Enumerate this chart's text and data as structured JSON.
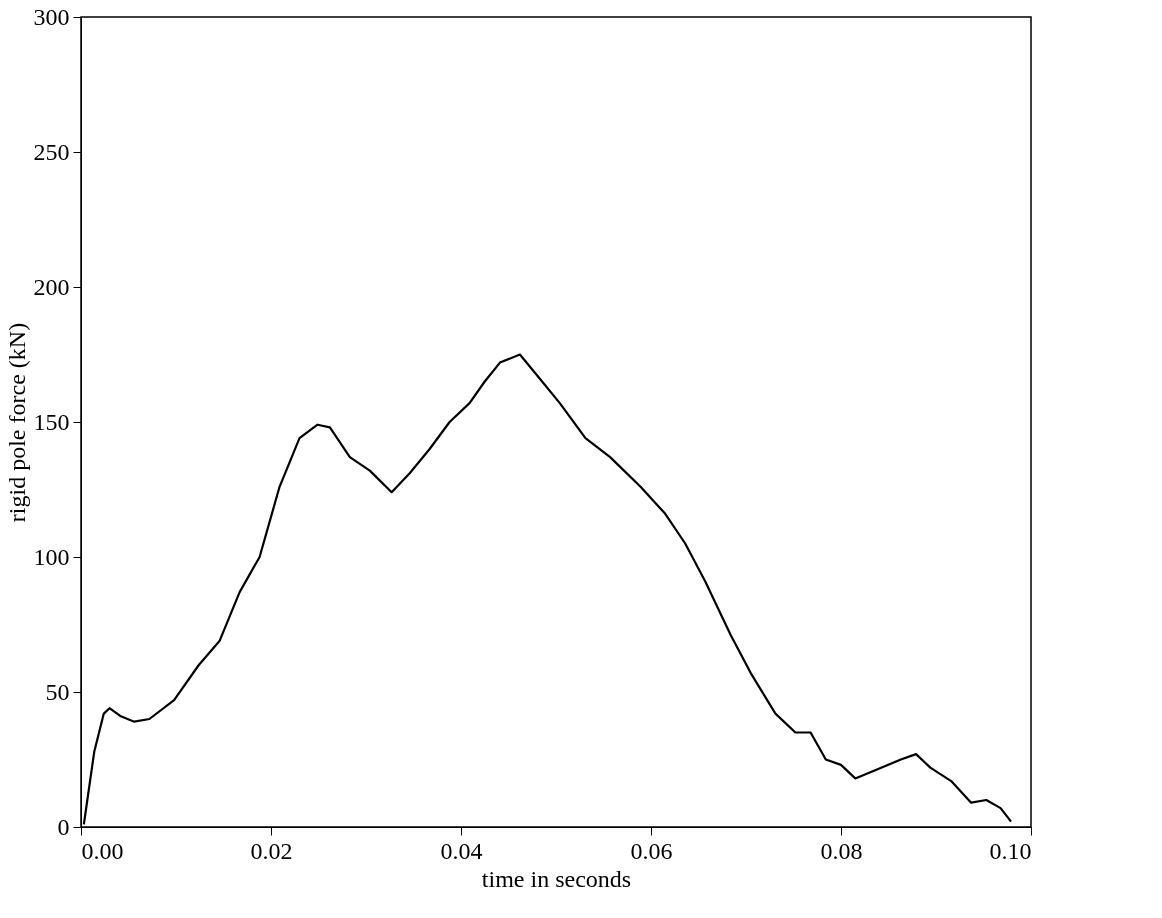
{
  "chart_data": {
    "type": "line",
    "xlabel": "time in seconds",
    "ylabel": "rigid pole force   (kN)",
    "xlim": [
      0,
      0.1
    ],
    "xticks": [
      {
        "value": 0,
        "label": "0.00"
      },
      {
        "value": 0.02,
        "label": "0.02"
      },
      {
        "value": 0.04,
        "label": "0.04"
      },
      {
        "value": 0.06,
        "label": "0.06"
      },
      {
        "value": 0.08,
        "label": "0.08"
      },
      {
        "value": 0.1,
        "label": "0.10"
      }
    ],
    "ylim": [
      0,
      300
    ],
    "yticks": [
      0,
      50,
      100,
      150,
      200,
      250,
      300
    ],
    "grid": false,
    "marker": "none",
    "line_style": "solid",
    "series": [
      {
        "color": "#000000",
        "x": [
          0.0003,
          0.0014,
          0.0024,
          0.003,
          0.0042,
          0.0056,
          0.0072,
          0.0098,
          0.0124,
          0.0146,
          0.0167,
          0.0188,
          0.0209,
          0.023,
          0.0249,
          0.0262,
          0.0283,
          0.0304,
          0.0327,
          0.0346,
          0.0367,
          0.0388,
          0.0409,
          0.0425,
          0.0441,
          0.0462,
          0.0483,
          0.0504,
          0.0531,
          0.0557,
          0.0589,
          0.0615,
          0.0636,
          0.0657,
          0.0684,
          0.0705,
          0.0731,
          0.0752,
          0.0768,
          0.0784,
          0.08,
          0.0815,
          0.0836,
          0.0863,
          0.0879,
          0.0894,
          0.0916,
          0.0937,
          0.0953,
          0.0968,
          0.0979
        ],
        "values": [
          1,
          28,
          42,
          44,
          41,
          39,
          40,
          47,
          60,
          69,
          87,
          100,
          126,
          144,
          149,
          148,
          137,
          132,
          124,
          131,
          140,
          150,
          157,
          165,
          172,
          175,
          166,
          157,
          144,
          137,
          126,
          116,
          105,
          91,
          71,
          57,
          42,
          35,
          35,
          25,
          23,
          18,
          21,
          25,
          27,
          22,
          17,
          9,
          10,
          7,
          2
        ]
      }
    ]
  }
}
